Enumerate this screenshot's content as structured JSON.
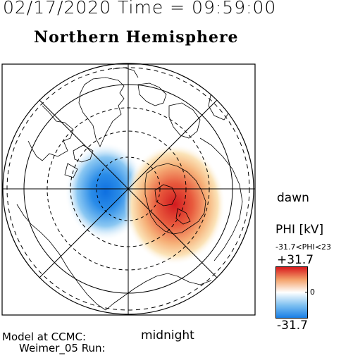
{
  "header": {
    "timestamp": "02/17/2020 Time = 09:59:00",
    "title": "Northern Hemisphere"
  },
  "map": {
    "orientation": {
      "right": "dawn",
      "bottom": "midnight"
    },
    "potential_cells": [
      {
        "kind": "negative",
        "color": "#1a7fe6",
        "side": "dusk"
      },
      {
        "kind": "positive",
        "color": "#d7191c",
        "side": "dawn"
      }
    ]
  },
  "colorbar": {
    "quantity": "PHI [kV]",
    "range_text": "-31.7<PHI<23",
    "max_label": "+31.7",
    "zero_label": "0",
    "min_label": "-31.7",
    "colors": [
      "#d7191c",
      "#f4a26b",
      "#ffffff",
      "#7fc1f1",
      "#1a7fe6"
    ]
  },
  "footer": {
    "line1": "Model at CCMC:",
    "line2": "Weimer_05 Run:"
  }
}
